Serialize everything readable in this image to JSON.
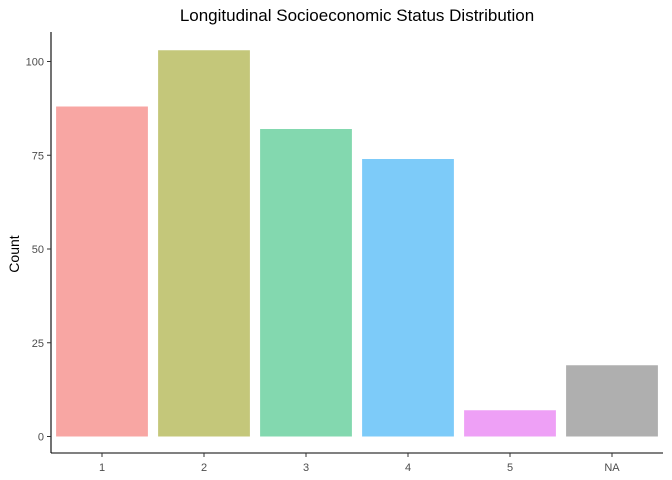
{
  "chart_data": {
    "type": "bar",
    "title": "Longitudinal Socioeconomic Status Distribution",
    "xlabel": "",
    "ylabel": "Count",
    "categories": [
      "1",
      "2",
      "3",
      "4",
      "5",
      "NA"
    ],
    "values": [
      88,
      103,
      82,
      74,
      7,
      19
    ],
    "colors": [
      "#F8A6A3",
      "#C4C77A",
      "#83D8AF",
      "#7DCBF9",
      "#EEA0F6",
      "#AFAFAF"
    ],
    "ylim": [
      0,
      108
    ],
    "yticks": [
      0,
      25,
      50,
      75,
      100
    ],
    "grid": false,
    "legend": "none"
  }
}
